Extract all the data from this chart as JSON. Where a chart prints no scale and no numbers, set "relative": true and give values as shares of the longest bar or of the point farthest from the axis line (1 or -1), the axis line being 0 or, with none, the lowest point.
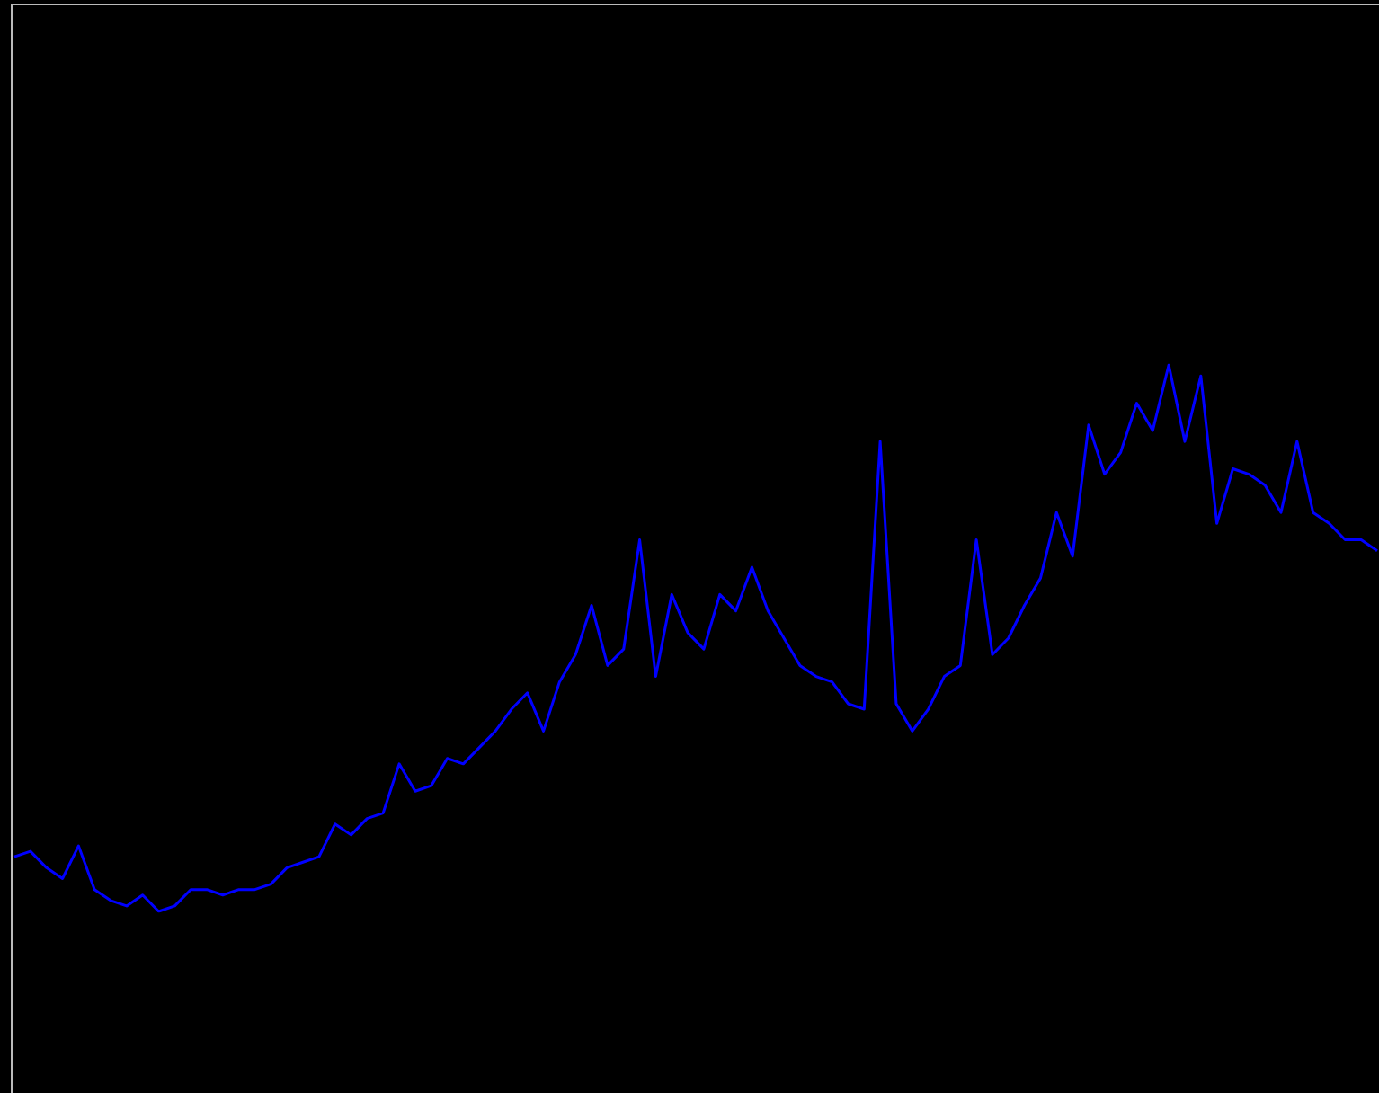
{
  "chart_data": {
    "type": "line",
    "relative": true,
    "color": "#0000ff",
    "categories": [
      null,
      null,
      null,
      null,
      null,
      null,
      null,
      null,
      null,
      null,
      null,
      null,
      null,
      null,
      null,
      null,
      null,
      null,
      null,
      null,
      null,
      null,
      null,
      null,
      null,
      null,
      null,
      null,
      null,
      null,
      null,
      null,
      null,
      null,
      null,
      null,
      null,
      null,
      null,
      null,
      null,
      null,
      null,
      null,
      null,
      null,
      null,
      null,
      null,
      null,
      null,
      null,
      null,
      null,
      null,
      null,
      null,
      null,
      null,
      null,
      null,
      null,
      null,
      null,
      null,
      null,
      null,
      null,
      null,
      null,
      null,
      null,
      null,
      null,
      null,
      null,
      null,
      null,
      null,
      null,
      null,
      null,
      null,
      null,
      null,
      null
    ],
    "values": [
      0.1,
      0.11,
      0.08,
      0.06,
      0.12,
      0.04,
      0.02,
      0.01,
      0.03,
      0,
      0.01,
      0.04,
      0.04,
      0.03,
      0.04,
      0.04,
      0.05,
      0.08,
      0.09,
      0.1,
      0.16,
      0.14,
      0.17,
      0.18,
      0.27,
      0.22,
      0.23,
      0.28,
      0.27,
      0.3,
      0.33,
      0.37,
      0.4,
      0.33,
      0.42,
      0.47,
      0.56,
      0.45,
      0.48,
      0.68,
      0.43,
      0.58,
      0.51,
      0.48,
      0.58,
      0.55,
      0.63,
      0.55,
      0.5,
      0.45,
      0.43,
      0.42,
      0.38,
      0.37,
      0.86,
      0.38,
      0.33,
      0.37,
      0.43,
      0.45,
      0.68,
      0.47,
      0.5,
      0.56,
      0.61,
      0.73,
      0.65,
      0.89,
      0.8,
      0.84,
      0.93,
      0.88,
      1,
      0.86,
      0.98,
      0.71,
      0.81,
      0.8,
      0.78,
      0.73,
      0.86,
      0.73,
      0.71,
      0.68,
      0.68,
      0.66
    ]
  }
}
